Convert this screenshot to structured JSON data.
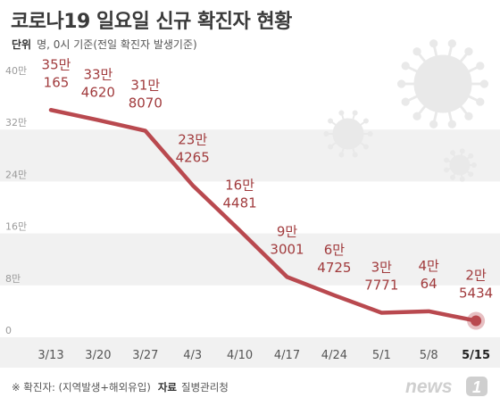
{
  "header": {
    "title": "코로나19 일요일 신규 확진자 현황",
    "unit_label": "단위",
    "unit_text": "명, 0시 기준(전일 확진자 발생기준)"
  },
  "footer": {
    "note": "※ 확진자: (지역발생+해외유입)",
    "source_label": "자료",
    "source_text": "질병관리청"
  },
  "logo": {
    "text": "news",
    "digit": "1"
  },
  "colors": {
    "line": "#b9494f",
    "label": "#a13b3d",
    "band": "#f1f1f1",
    "axis_text": "#9a9a9a",
    "tick_text": "#555555",
    "tick_last": "#222222"
  },
  "chart_data": {
    "type": "line",
    "x": [
      "3/13",
      "3/20",
      "3/27",
      "4/3",
      "4/10",
      "4/17",
      "4/24",
      "5/1",
      "5/8",
      "5/15"
    ],
    "y_tick_labels": [
      "0",
      "8만",
      "16만",
      "24만",
      "32만",
      "40만"
    ],
    "ylim": [
      0,
      400000
    ],
    "series": [
      {
        "values": [
          350165,
          334620,
          318070,
          234265,
          164481,
          93001,
          64725,
          37771,
          40064,
          25434
        ]
      }
    ],
    "point_labels": [
      [
        "35만",
        "165"
      ],
      [
        "33만",
        "4620"
      ],
      [
        "31만",
        "8070"
      ],
      [
        "23만",
        "4265"
      ],
      [
        "16만",
        "4481"
      ],
      [
        "9만",
        "3001"
      ],
      [
        "6만",
        "4725"
      ],
      [
        "3만",
        "7771"
      ],
      [
        "4만",
        "64"
      ],
      [
        "2만",
        "5434"
      ]
    ],
    "highlight_index": 9,
    "grid": false
  }
}
